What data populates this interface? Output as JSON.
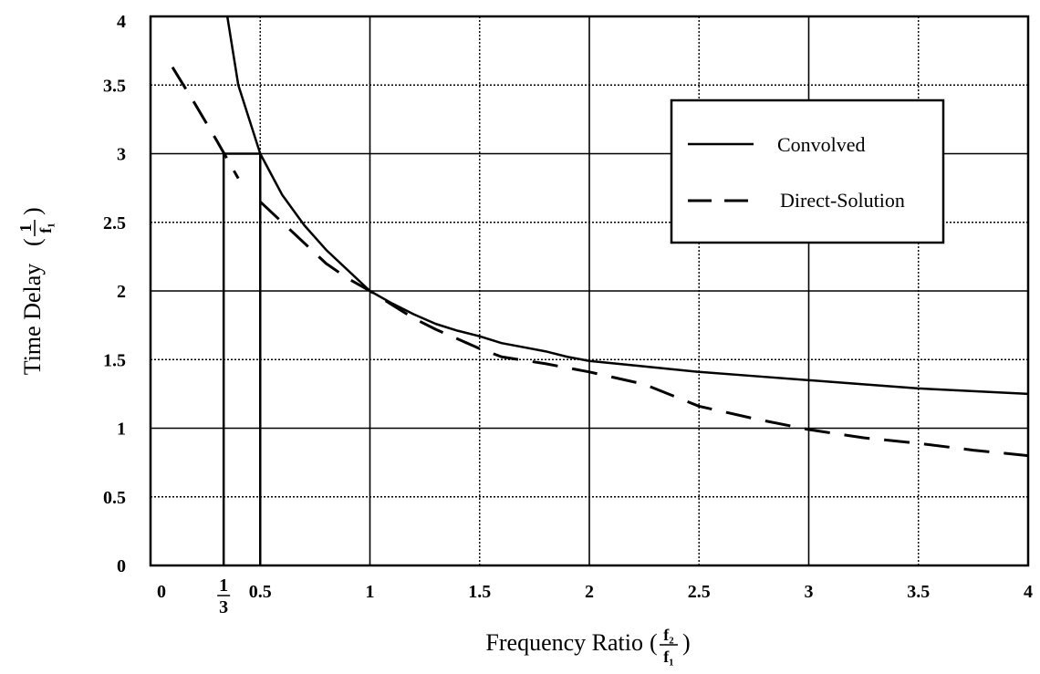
{
  "chart_data": {
    "type": "line",
    "xlabel": "Frequency Ratio",
    "xlabel_fraction": {
      "num": "f₂",
      "den": "f₁"
    },
    "ylabel": "Time Delay",
    "ylabel_fraction": {
      "num": "1",
      "den": "f₁"
    },
    "xlim": [
      0,
      4
    ],
    "ylim": [
      0,
      4
    ],
    "grid": true,
    "x_ticks": [
      {
        "value": 0,
        "label": "0"
      },
      {
        "value": 0.5,
        "label": "0.5"
      },
      {
        "value": 1,
        "label": "1"
      },
      {
        "value": 1.5,
        "label": "1.5"
      },
      {
        "value": 2,
        "label": "2"
      },
      {
        "value": 2.5,
        "label": "2.5"
      },
      {
        "value": 3,
        "label": "3"
      },
      {
        "value": 3.5,
        "label": "3.5"
      },
      {
        "value": 4,
        "label": "4"
      }
    ],
    "x_special_tick": {
      "value": 0.3333,
      "num": "1",
      "den": "3"
    },
    "y_ticks": [
      {
        "value": 0,
        "label": "0"
      },
      {
        "value": 0.5,
        "label": "0.5"
      },
      {
        "value": 1,
        "label": "1"
      },
      {
        "value": 1.5,
        "label": "1.5"
      },
      {
        "value": 2,
        "label": "2"
      },
      {
        "value": 2.5,
        "label": "2.5"
      },
      {
        "value": 3,
        "label": "3"
      },
      {
        "value": 3.5,
        "label": "3.5"
      },
      {
        "value": 4,
        "label": "4"
      }
    ],
    "legend_position": "top-right",
    "series": [
      {
        "name": "Convolved",
        "style": "solid",
        "segments": [
          [
            [
              0.35,
              4.0
            ],
            [
              0.4,
              3.5
            ],
            [
              0.5,
              3.0
            ],
            [
              0.6,
              2.7
            ],
            [
              0.7,
              2.48
            ],
            [
              0.8,
              2.3
            ],
            [
              0.9,
              2.15
            ],
            [
              1.0,
              2.0
            ],
            [
              1.1,
              1.91
            ],
            [
              1.2,
              1.83
            ],
            [
              1.3,
              1.76
            ],
            [
              1.4,
              1.71
            ],
            [
              1.5,
              1.67
            ],
            [
              1.6,
              1.62
            ],
            [
              1.7,
              1.59
            ],
            [
              1.8,
              1.56
            ],
            [
              1.9,
              1.52
            ],
            [
              2.0,
              1.49
            ],
            [
              2.25,
              1.45
            ],
            [
              2.5,
              1.41
            ],
            [
              2.75,
              1.38
            ],
            [
              3.0,
              1.35
            ],
            [
              3.25,
              1.32
            ],
            [
              3.5,
              1.29
            ],
            [
              3.75,
              1.27
            ],
            [
              4.0,
              1.25
            ]
          ]
        ]
      },
      {
        "name": "Direct-Solution",
        "style": "dashed",
        "segments": [
          [
            [
              0.1,
              3.63
            ],
            [
              0.2,
              3.37
            ],
            [
              0.3,
              3.1
            ],
            [
              0.4,
              2.82
            ]
          ],
          [
            [
              0.5,
              2.65
            ],
            [
              0.6,
              2.5
            ],
            [
              0.7,
              2.35
            ],
            [
              0.8,
              2.2
            ],
            [
              0.9,
              2.09
            ],
            [
              1.0,
              2.0
            ],
            [
              1.1,
              1.9
            ],
            [
              1.2,
              1.8
            ],
            [
              1.3,
              1.72
            ],
            [
              1.4,
              1.65
            ],
            [
              1.5,
              1.58
            ],
            [
              1.6,
              1.52
            ],
            [
              1.8,
              1.47
            ],
            [
              2.0,
              1.41
            ],
            [
              2.25,
              1.32
            ],
            [
              2.5,
              1.16
            ],
            [
              2.75,
              1.07
            ],
            [
              3.0,
              0.99
            ],
            [
              3.25,
              0.93
            ],
            [
              3.5,
              0.89
            ],
            [
              3.75,
              0.84
            ],
            [
              4.0,
              0.8
            ]
          ]
        ]
      }
    ],
    "reference_lines": [
      [
        [
          0.3333,
          0
        ],
        [
          0.3333,
          3.0
        ],
        [
          0.5,
          3.0
        ]
      ],
      [
        [
          0.5,
          0
        ],
        [
          0.5,
          3.0
        ]
      ]
    ]
  },
  "colors": {
    "line": "#000000",
    "grid": "#000000",
    "background": "#ffffff"
  }
}
